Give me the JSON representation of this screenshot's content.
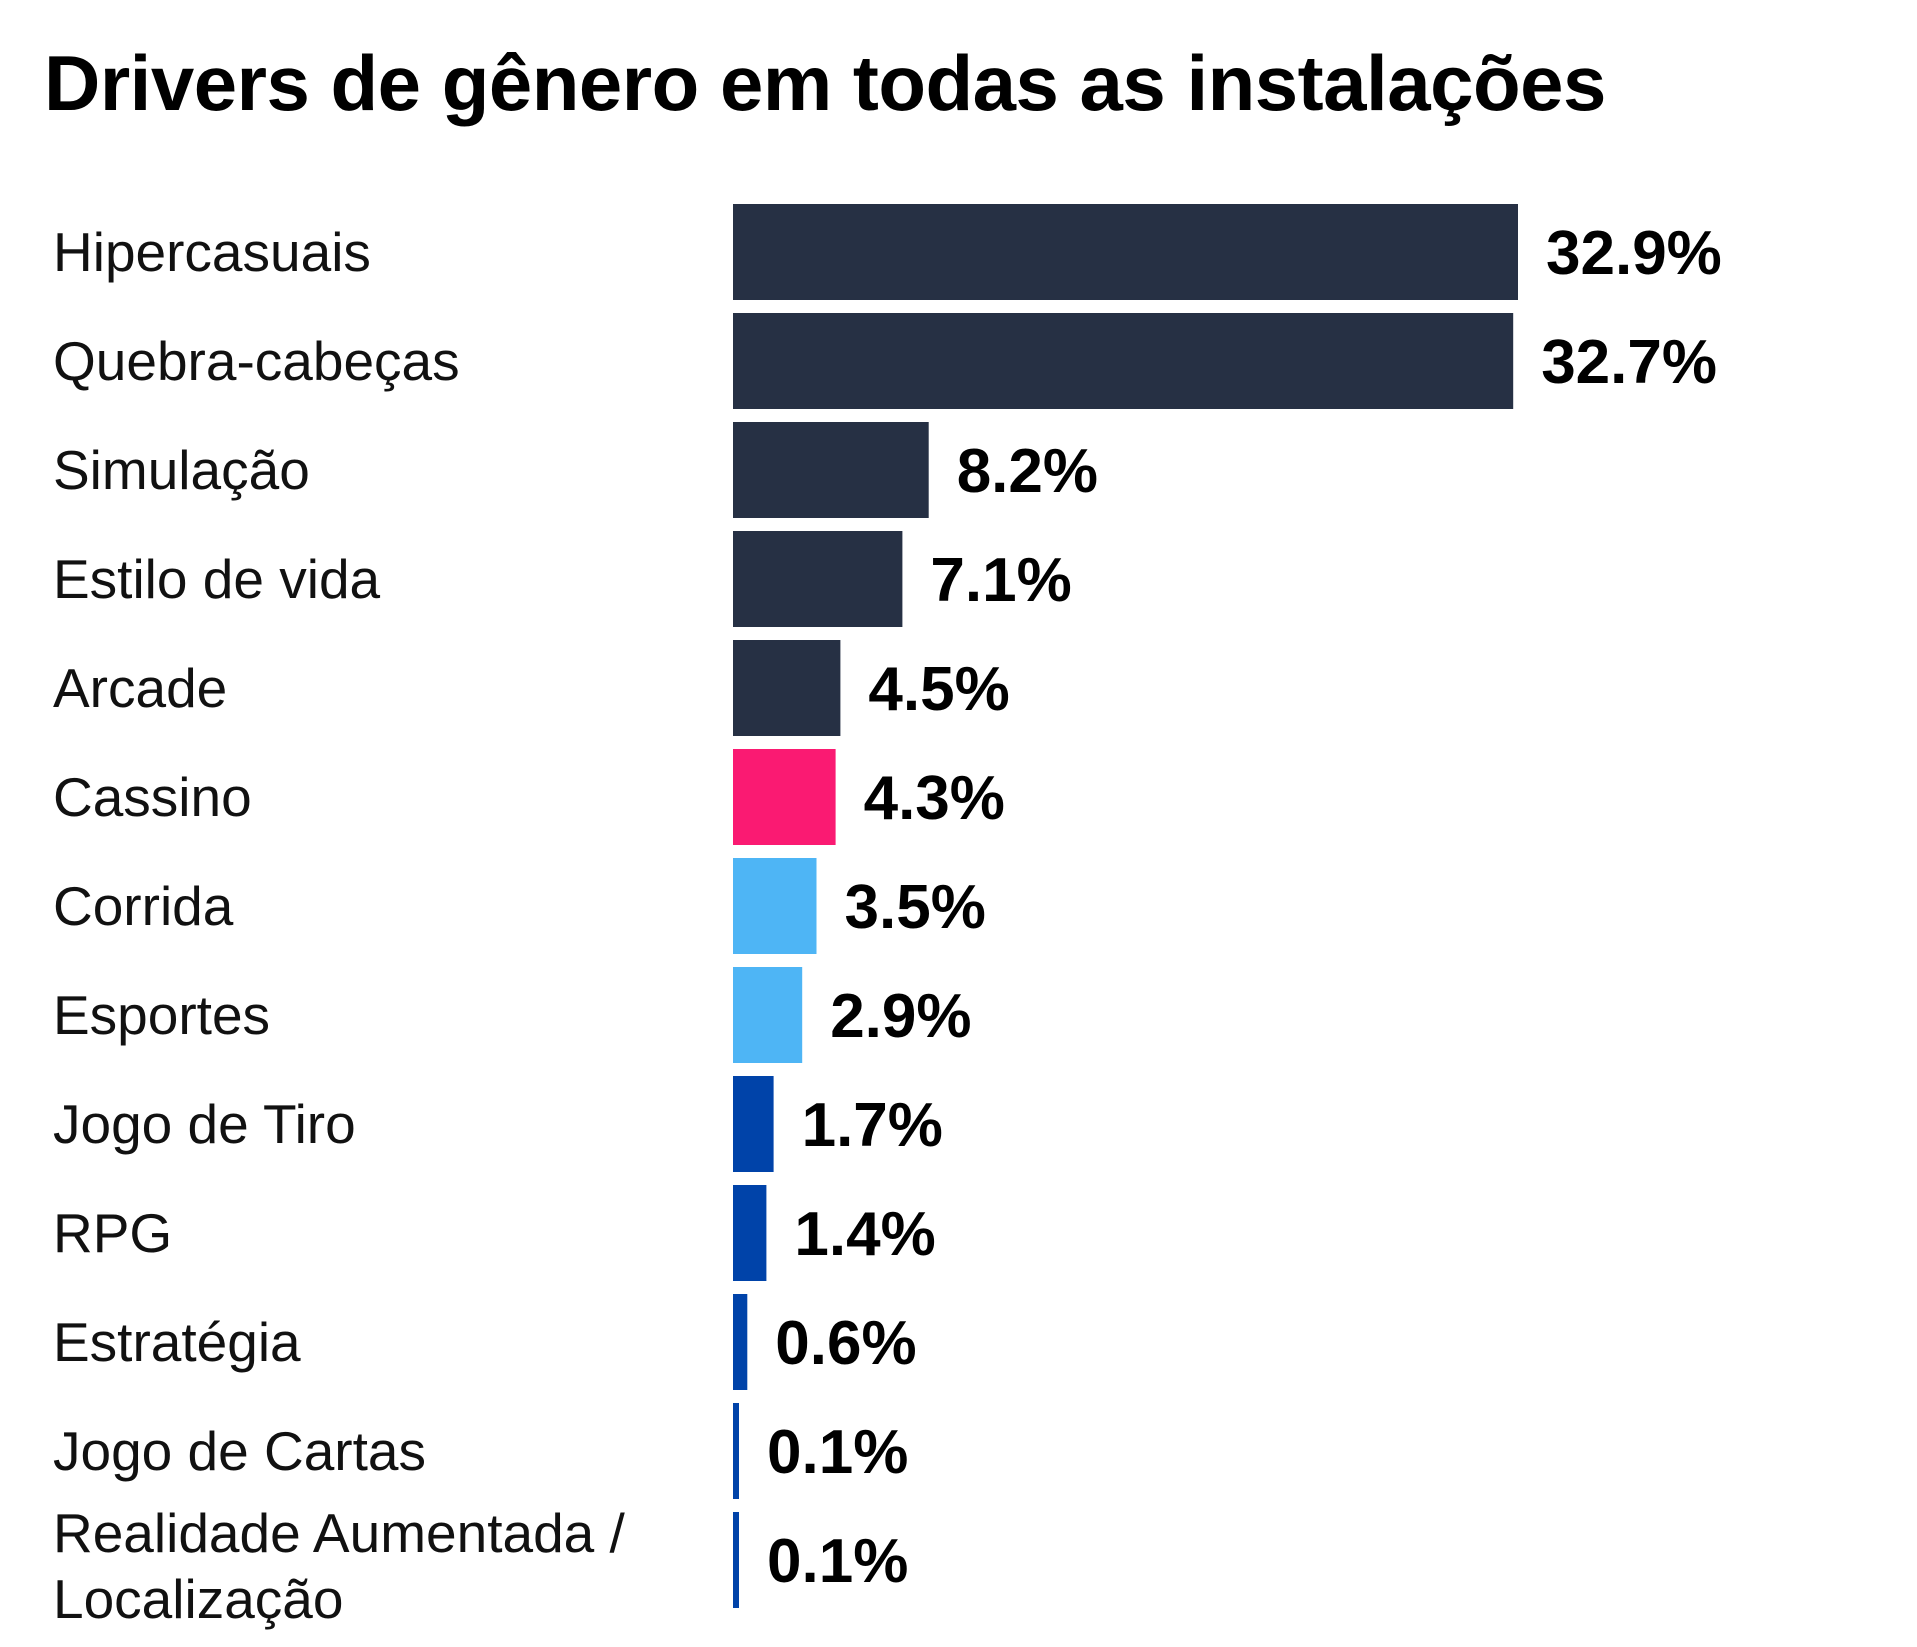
{
  "chart_data": {
    "type": "bar",
    "orientation": "horizontal",
    "title": "Drivers de gênero em todas as instalações",
    "categories": [
      "Hipercasuais",
      "Quebra-cabeças",
      "Simulação",
      "Estilo de vida",
      "Arcade",
      "Cassino",
      "Corrida",
      "Esportes",
      "Jogo de Tiro",
      "RPG",
      "Estratégia",
      "Jogo de Cartas",
      "Realidade Aumentada / Localização"
    ],
    "category_lines": [
      [
        "Hipercasuais"
      ],
      [
        "Quebra-cabeças"
      ],
      [
        "Simulação"
      ],
      [
        "Estilo de vida"
      ],
      [
        "Arcade"
      ],
      [
        "Cassino"
      ],
      [
        "Corrida"
      ],
      [
        "Esportes"
      ],
      [
        "Jogo de Tiro"
      ],
      [
        "RPG"
      ],
      [
        "Estratégia"
      ],
      [
        "Jogo de Cartas"
      ],
      [
        "Realidade Aumentada /",
        "Localização"
      ]
    ],
    "values": [
      32.9,
      32.7,
      8.2,
      7.1,
      4.5,
      4.3,
      3.5,
      2.9,
      1.7,
      1.4,
      0.6,
      0.1,
      0.1
    ],
    "value_labels": [
      "32.9%",
      "32.7%",
      "8.2%",
      "7.1%",
      "4.5%",
      "4.3%",
      "3.5%",
      "2.9%",
      "1.7%",
      "1.4%",
      "0.6%",
      "0.1%",
      "0.1%"
    ],
    "bar_colors": [
      "#263044",
      "#263044",
      "#263044",
      "#263044",
      "#263044",
      "#FA1A72",
      "#4EB5F5",
      "#4EB5F5",
      "#0043A9",
      "#0043A9",
      "#0043A9",
      "#0043A9",
      "#0043A9"
    ],
    "unit": "%",
    "xlim": [
      0,
      32.9
    ],
    "grid": false,
    "legend": false
  }
}
